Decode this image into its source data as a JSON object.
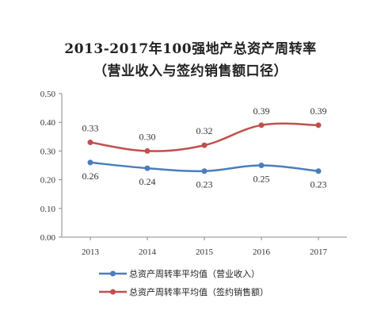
{
  "title_line1": "2013-2017年100强地产总资产周转率",
  "title_line2": "（营业收入与签约销售额口径）",
  "chart_data": {
    "type": "line",
    "categories": [
      "2013",
      "2014",
      "2015",
      "2016",
      "2017"
    ],
    "ylim": [
      0,
      0.5
    ],
    "yticks": [
      "0.00",
      "0.10",
      "0.20",
      "0.30",
      "0.40",
      "0.50"
    ],
    "grid": false,
    "legend_position": "bottom",
    "series": [
      {
        "name": "总资产周转率平均值（营业收入）",
        "values": [
          0.26,
          0.24,
          0.23,
          0.25,
          0.23
        ],
        "labels": [
          "0.26",
          "0.24",
          "0.23",
          "0.25",
          "0.23"
        ],
        "color": "#4a7ebb"
      },
      {
        "name": "总资产周转率平均值（签约销售额）",
        "values": [
          0.33,
          0.3,
          0.32,
          0.39,
          0.39
        ],
        "labels": [
          "0.33",
          "0.30",
          "0.32",
          "0.39",
          "0.39"
        ],
        "color": "#c0504d"
      }
    ]
  }
}
